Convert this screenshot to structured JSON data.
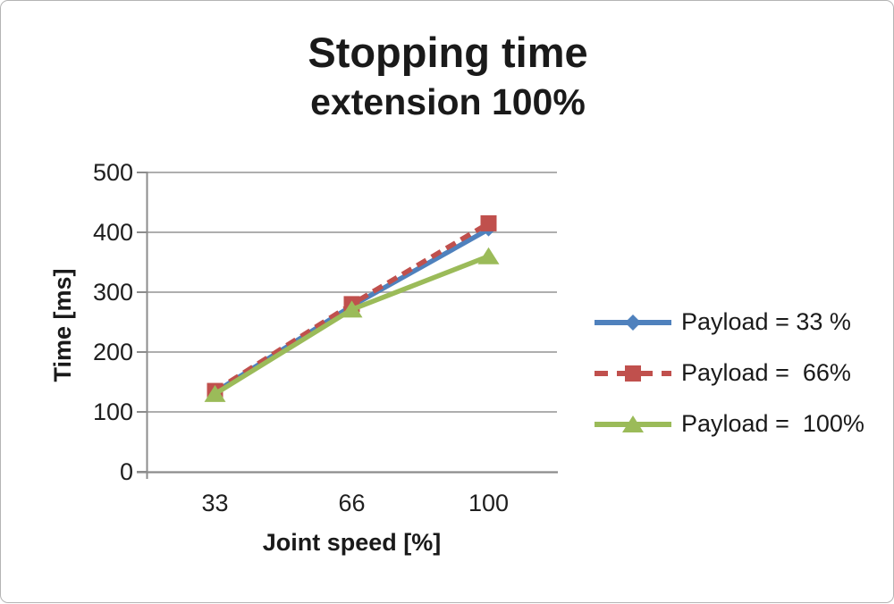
{
  "window": {
    "background": "#ffffff",
    "border_color": "#b4b4b4"
  },
  "chart_data": {
    "type": "line",
    "title": "Stopping time",
    "subtitle": "extension 100%",
    "categories": [
      "33",
      "66",
      "100"
    ],
    "xlabel": "Joint speed [%]",
    "ylabel": "Time [ms]",
    "ylim": [
      0,
      500
    ],
    "ytick_step": 100,
    "yticks": [
      "0",
      "100",
      "200",
      "300",
      "400",
      "500"
    ],
    "grid": true,
    "legend_position": "right",
    "grid_color": "#a3a3a3",
    "axis_color": "#8c8c8c",
    "text_color": "#1a1a1a",
    "series": [
      {
        "name": "Payload = 33 %",
        "color": "#4F81BD",
        "dash": "solid",
        "marker": "diamond",
        "values": [
          133,
          277,
          405
        ]
      },
      {
        "name": "Payload =  66%",
        "color": "#C0504D",
        "dash": "dashed",
        "marker": "square",
        "values": [
          135,
          280,
          415
        ]
      },
      {
        "name": "Payload =  100%",
        "color": "#9BBB59",
        "dash": "solid",
        "marker": "triangle",
        "values": [
          130,
          271,
          360
        ]
      }
    ]
  }
}
